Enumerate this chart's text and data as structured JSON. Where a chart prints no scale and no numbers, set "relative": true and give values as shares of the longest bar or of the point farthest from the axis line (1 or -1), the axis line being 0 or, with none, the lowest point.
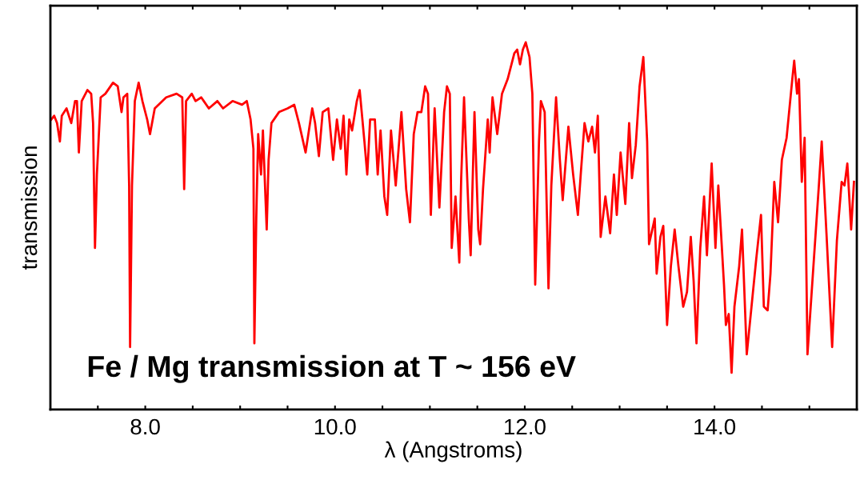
{
  "chart_data": {
    "type": "line",
    "relative": true,
    "xlabel": "λ (Angstroms)",
    "ylabel": "transmission",
    "annotations": [
      "Fe / Mg transmission at T ~ 156 eV"
    ],
    "xlim": [
      7.0,
      15.5
    ],
    "xticks": [
      {
        "value": 7.5,
        "label": null
      },
      {
        "value": 8,
        "label": "8.0"
      },
      {
        "value": 8.5,
        "label": null
      },
      {
        "value": 9,
        "label": null
      },
      {
        "value": 9.5,
        "label": null
      },
      {
        "value": 10,
        "label": "10.0"
      },
      {
        "value": 10.5,
        "label": null
      },
      {
        "value": 11,
        "label": null
      },
      {
        "value": 11.5,
        "label": null
      },
      {
        "value": 12,
        "label": "12.0"
      },
      {
        "value": 12.5,
        "label": null
      },
      {
        "value": 13,
        "label": null
      },
      {
        "value": 13.5,
        "label": null
      },
      {
        "value": 14,
        "label": "14.0"
      },
      {
        "value": 14.5,
        "label": null
      },
      {
        "value": 15,
        "label": null
      }
    ],
    "tick_labels": "x",
    "grid": false,
    "legend": false,
    "marker": "none",
    "line_style": "solid",
    "series": [
      {
        "color": "#ff0000",
        "x": [
          7.01,
          7.04,
          7.07,
          7.1,
          7.12,
          7.17,
          7.22,
          7.26,
          7.28,
          7.3,
          7.33,
          7.39,
          7.43,
          7.45,
          7.47,
          7.49,
          7.53,
          7.58,
          7.66,
          7.71,
          7.75,
          7.77,
          7.81,
          7.83,
          7.84,
          7.86,
          7.89,
          7.93,
          7.97,
          8.02,
          8.05,
          8.1,
          8.22,
          8.33,
          8.39,
          8.41,
          8.43,
          8.49,
          8.53,
          8.59,
          8.67,
          8.76,
          8.82,
          8.92,
          9.02,
          9.07,
          9.11,
          9.14,
          9.15,
          9.17,
          9.19,
          9.22,
          9.24,
          9.28,
          9.3,
          9.33,
          9.41,
          9.5,
          9.57,
          9.62,
          9.69,
          9.76,
          9.79,
          9.83,
          9.87,
          9.93,
          9.98,
          10.02,
          10.06,
          10.09,
          10.12,
          10.15,
          10.18,
          10.23,
          10.26,
          10.31,
          10.34,
          10.37,
          10.42,
          10.45,
          10.48,
          10.52,
          10.55,
          10.59,
          10.64,
          10.7,
          10.75,
          10.79,
          10.83,
          10.87,
          10.91,
          10.95,
          10.98,
          11.01,
          11.05,
          11.1,
          11.15,
          11.18,
          11.21,
          11.23,
          11.27,
          11.31,
          11.33,
          11.36,
          11.41,
          11.43,
          11.47,
          11.51,
          11.53,
          11.56,
          11.61,
          11.63,
          11.66,
          11.71,
          11.76,
          11.82,
          11.89,
          11.92,
          11.95,
          11.98,
          12.01,
          12.05,
          12.08,
          12.11,
          12.15,
          12.17,
          12.21,
          12.25,
          12.28,
          12.33,
          12.37,
          12.4,
          12.46,
          12.51,
          12.56,
          12.59,
          12.63,
          12.67,
          12.71,
          12.74,
          12.77,
          12.8,
          12.85,
          12.9,
          12.94,
          12.97,
          13.01,
          13.06,
          13.1,
          13.13,
          13.17,
          13.21,
          13.25,
          13.29,
          13.31,
          13.37,
          13.39,
          13.43,
          13.46,
          13.5,
          13.54,
          13.58,
          13.62,
          13.67,
          13.71,
          13.75,
          13.78,
          13.81,
          13.85,
          13.89,
          13.92,
          13.97,
          14.01,
          14.04,
          14.1,
          14.12,
          14.15,
          14.18,
          14.21,
          14.26,
          14.29,
          14.34,
          14.39,
          14.44,
          14.49,
          14.52,
          14.56,
          14.59,
          14.63,
          14.67,
          14.71,
          14.76,
          14.82,
          14.84,
          14.87,
          14.89,
          14.92,
          14.95,
          14.98,
          15.04,
          15.1,
          15.13,
          15.18,
          15.24,
          15.29,
          15.34,
          15.37,
          15.4,
          15.44,
          15.47
        ],
        "values": [
          0.79,
          0.8,
          0.78,
          0.73,
          0.8,
          0.82,
          0.78,
          0.84,
          0.84,
          0.7,
          0.84,
          0.87,
          0.86,
          0.78,
          0.44,
          0.64,
          0.85,
          0.86,
          0.89,
          0.88,
          0.81,
          0.85,
          0.86,
          0.61,
          0.17,
          0.61,
          0.84,
          0.89,
          0.84,
          0.79,
          0.75,
          0.82,
          0.85,
          0.86,
          0.85,
          0.6,
          0.84,
          0.86,
          0.84,
          0.85,
          0.82,
          0.84,
          0.82,
          0.84,
          0.83,
          0.84,
          0.79,
          0.71,
          0.18,
          0.52,
          0.75,
          0.64,
          0.76,
          0.49,
          0.68,
          0.78,
          0.81,
          0.82,
          0.83,
          0.78,
          0.7,
          0.82,
          0.78,
          0.69,
          0.81,
          0.82,
          0.68,
          0.79,
          0.71,
          0.8,
          0.64,
          0.79,
          0.76,
          0.84,
          0.87,
          0.73,
          0.64,
          0.79,
          0.79,
          0.64,
          0.76,
          0.58,
          0.53,
          0.76,
          0.61,
          0.81,
          0.6,
          0.51,
          0.75,
          0.81,
          0.81,
          0.88,
          0.86,
          0.53,
          0.82,
          0.55,
          0.81,
          0.88,
          0.86,
          0.44,
          0.58,
          0.4,
          0.63,
          0.85,
          0.52,
          0.42,
          0.81,
          0.49,
          0.45,
          0.6,
          0.79,
          0.7,
          0.85,
          0.75,
          0.86,
          0.9,
          0.97,
          0.98,
          0.94,
          0.98,
          1.0,
          0.96,
          0.86,
          0.34,
          0.73,
          0.84,
          0.81,
          0.33,
          0.61,
          0.85,
          0.68,
          0.57,
          0.77,
          0.64,
          0.53,
          0.64,
          0.78,
          0.73,
          0.77,
          0.7,
          0.8,
          0.47,
          0.58,
          0.48,
          0.64,
          0.53,
          0.7,
          0.56,
          0.78,
          0.63,
          0.72,
          0.88,
          0.96,
          0.73,
          0.45,
          0.52,
          0.37,
          0.47,
          0.5,
          0.23,
          0.39,
          0.49,
          0.39,
          0.28,
          0.32,
          0.47,
          0.35,
          0.18,
          0.44,
          0.58,
          0.42,
          0.67,
          0.44,
          0.61,
          0.34,
          0.23,
          0.26,
          0.1,
          0.28,
          0.39,
          0.49,
          0.15,
          0.28,
          0.41,
          0.53,
          0.28,
          0.27,
          0.37,
          0.62,
          0.51,
          0.68,
          0.74,
          0.9,
          0.95,
          0.86,
          0.9,
          0.62,
          0.74,
          0.15,
          0.38,
          0.61,
          0.73,
          0.48,
          0.17,
          0.46,
          0.62,
          0.61,
          0.67,
          0.49,
          0.62
        ]
      }
    ]
  }
}
